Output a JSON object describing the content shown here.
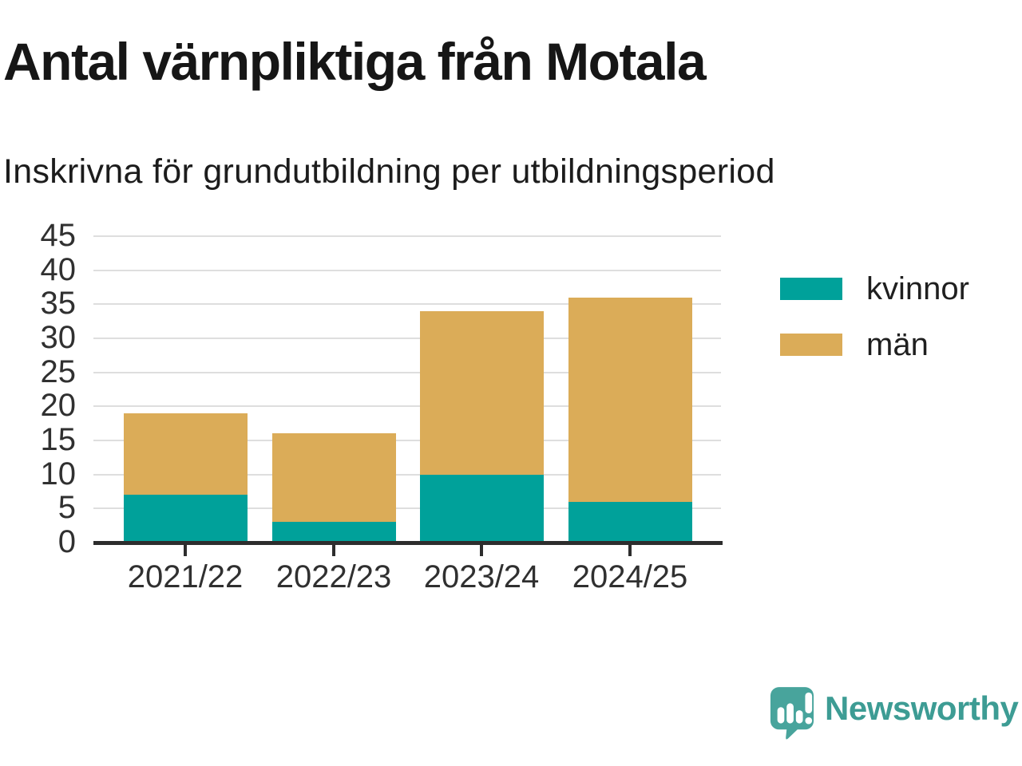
{
  "header": {
    "title": "Antal värnpliktiga från Motala",
    "subtitle": "Inskrivna för grundutbildning per utbildningsperiod"
  },
  "chart_data": {
    "type": "bar",
    "stacked": true,
    "categories": [
      "2021/22",
      "2022/23",
      "2023/24",
      "2024/25"
    ],
    "series": [
      {
        "name": "kvinnor",
        "color": "#00A19A",
        "values": [
          7,
          3,
          10,
          6
        ]
      },
      {
        "name": "män",
        "color": "#DBAC58",
        "values": [
          12,
          13,
          24,
          30
        ]
      }
    ],
    "totals": [
      19,
      16,
      34,
      36
    ],
    "title": "Antal värnpliktiga från Motala",
    "subtitle": "Inskrivna för grundutbildning per utbildningsperiod",
    "xlabel": "",
    "ylabel": "",
    "ylim": [
      0,
      45
    ],
    "yticks": [
      0,
      5,
      10,
      15,
      20,
      25,
      30,
      35,
      40,
      45
    ],
    "grid": true,
    "legend_position": "right"
  },
  "legend": {
    "items": [
      {
        "label": "kvinnor",
        "color": "#00A19A"
      },
      {
        "label": "män",
        "color": "#DBAC58"
      }
    ]
  },
  "branding": {
    "logo_text": "Newsworthy",
    "logo_icon": "newsworthy-pin-bar-chart-icon",
    "logo_color": "#3D9C94",
    "icon_color": "#48A49C"
  },
  "colors": {
    "background": "#FFFFFF",
    "gridline": "#DEDEDE",
    "axis": "#2D2D2D",
    "tick_label": "#303030",
    "kvinnor": "#00A19A",
    "man": "#DBAC58"
  }
}
